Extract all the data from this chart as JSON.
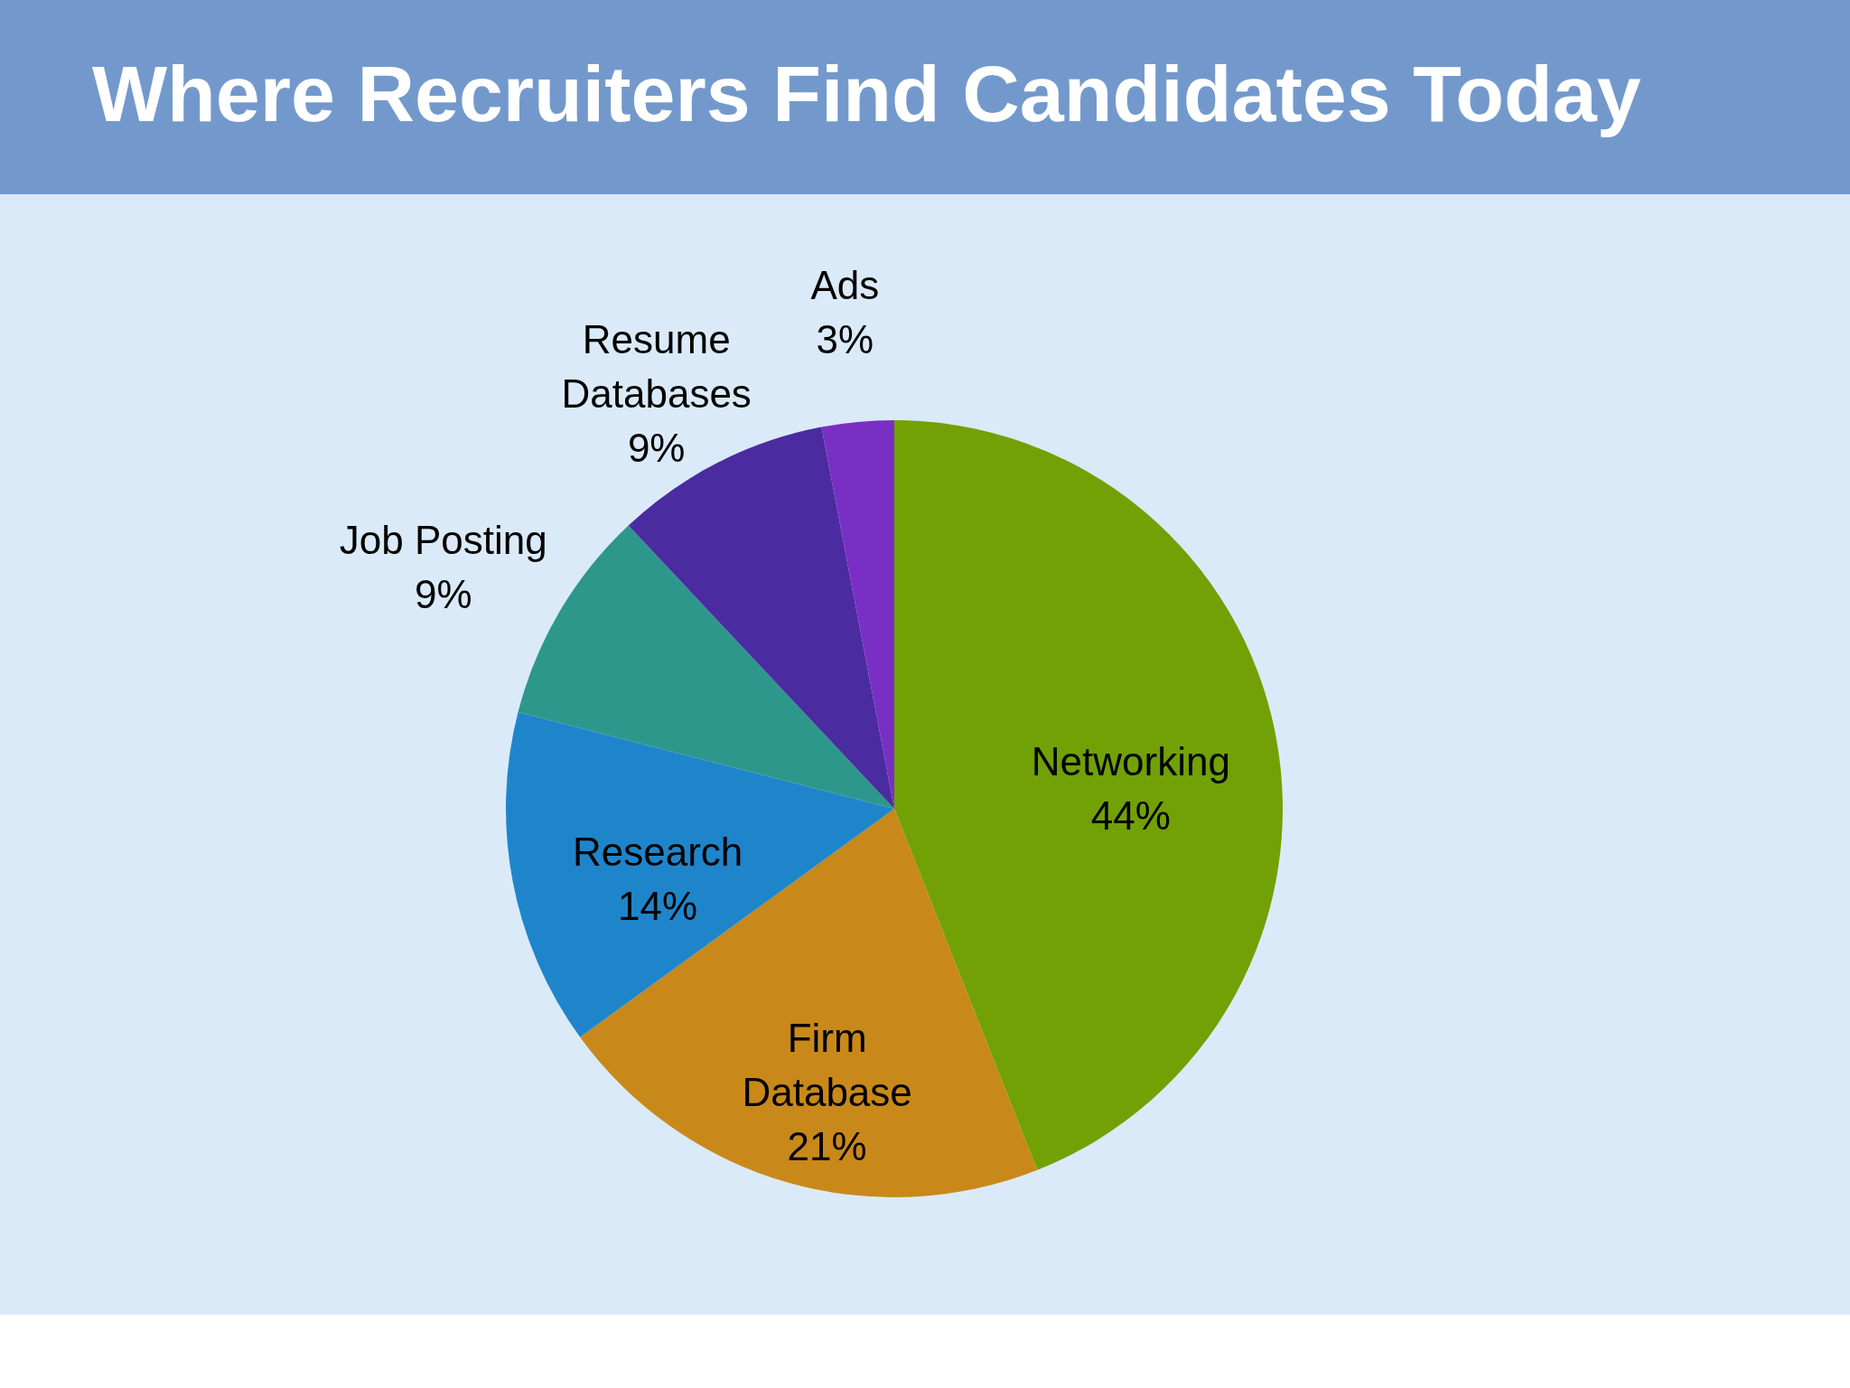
{
  "chart_data": {
    "type": "pie",
    "title": "Where Recruiters Find Candidates Today",
    "categories": [
      "Networking",
      "Firm Database",
      "Research",
      "Job Posting",
      "Resume Databases",
      "Ads"
    ],
    "values": [
      44,
      21,
      14,
      9,
      9,
      3
    ],
    "value_labels": [
      "44%",
      "21%",
      "14%",
      "9%",
      "9%",
      "3%"
    ],
    "colors": [
      "#72a105",
      "#c8891a",
      "#1f85cb",
      "#2e978c",
      "#4b2ba0",
      "#7a2fc4"
    ]
  }
}
